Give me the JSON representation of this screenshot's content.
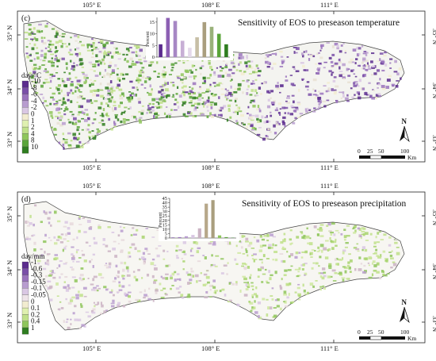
{
  "panels": [
    {
      "letter": "(c)",
      "title": "Sensitivity of EOS to preseason temperature",
      "legend": {
        "unit": "day/°C",
        "labels": [
          "-10",
          "-8",
          "-6",
          "-4",
          "-2",
          "0",
          "1",
          "2",
          "4",
          "8",
          "10"
        ],
        "colors": [
          "#5b2c8e",
          "#7a4fa8",
          "#9a73bd",
          "#b89ccf",
          "#d9c7e3",
          "#f2ecd0",
          "#dff0b0",
          "#bfe08a",
          "#8fc65c",
          "#5aa53a",
          "#2f7d20"
        ]
      },
      "histogram": {
        "ylabel": "Percent",
        "ymax": 17,
        "yticks": [
          "0",
          "5",
          "10",
          "15"
        ],
        "values": [
          5.5,
          16.8,
          15.5,
          7,
          4,
          8.5,
          15,
          13,
          10,
          5.5
        ],
        "colors": [
          "#5b2c8e",
          "#8c5fb3",
          "#a787c4",
          "#c7aed5",
          "#e4d8ea",
          "#c7bfa6",
          "#a99e7e",
          "#9ab27a",
          "#5aa53a",
          "#2f7d20"
        ]
      }
    },
    {
      "letter": "(d)",
      "title": "Sensitivity of EOS to preseason precipitation",
      "legend": {
        "unit": "day/mm",
        "labels": [
          "-1",
          "-0.6",
          "-0.3",
          "-0.15",
          "-0.1",
          "-0.05",
          "0",
          "0.1",
          "0.2",
          "0.4",
          "1"
        ],
        "colors": [
          "#5b2c8e",
          "#7a4fa8",
          "#9a73bd",
          "#b89ccf",
          "#d9c7e3",
          "#eee4e9",
          "#f2ecd0",
          "#dff0b0",
          "#bfe08a",
          "#8fc65c",
          "#2f7d20"
        ]
      },
      "histogram": {
        "ylabel": "Percent",
        "ymax": 45,
        "yticks": [
          "0",
          "5",
          "10",
          "15",
          "20",
          "25",
          "30",
          "35",
          "40",
          "45"
        ],
        "values": [
          0.5,
          1,
          2,
          3.5,
          11,
          39,
          43,
          3,
          1,
          0.3
        ],
        "colors": [
          "#5b2c8e",
          "#9a73bd",
          "#b89ccf",
          "#d9c7e3",
          "#cbb3c4",
          "#b7a88a",
          "#a99e7e",
          "#8fc65c",
          "#5aa53a",
          "#2f7d20"
        ]
      }
    }
  ],
  "axis": {
    "lon_labels": [
      "105° E",
      "108° E",
      "111° E"
    ],
    "lat_labels": [
      "35° N",
      "34° N",
      "33° N"
    ]
  },
  "scale_bar": {
    "ticks": [
      "0",
      "25",
      "50",
      "100"
    ],
    "unit": "Km"
  },
  "north_arrow": {
    "label": "N",
    "icon": "north-arrow-icon"
  }
}
